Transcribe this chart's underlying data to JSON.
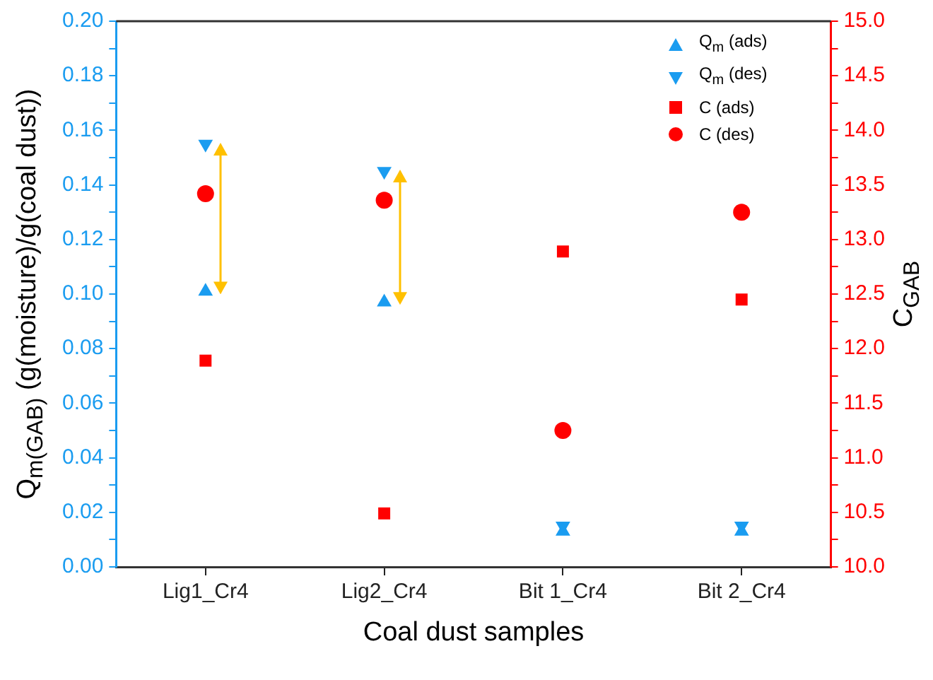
{
  "chart_data": {
    "type": "scatter",
    "xlabel": "Coal dust samples",
    "ylabel": "Q$_{m(GAB)}$ (g(moisture)/g(coal dust))",
    "y2label": "C$_{GAB}$",
    "categories": [
      "Lig1_Cr4",
      "Lig2_Cr4",
      "Bit 1_Cr4",
      "Bit 2_Cr4"
    ],
    "series": [
      {
        "name": "Q$_{m}$ (ads)",
        "color": "#1a9cf0",
        "marker": "triangle",
        "values": [
          0.101,
          0.097,
          0.013,
          0.013
        ]
      },
      {
        "name": "Q$_{m}$ (des)",
        "color": "#1a9cf0",
        "marker": "triangle-down",
        "values": [
          0.155,
          0.145,
          0.015,
          0.015
        ]
      },
      {
        "name": "C (ads)",
        "color": "#ff0000",
        "marker": "square",
        "axis": "y2",
        "values": [
          11.89,
          10.49,
          12.89,
          12.45
        ]
      },
      {
        "name": "C (des)",
        "color": "#ff0000",
        "marker": "circle",
        "axis": "y2",
        "values": [
          13.42,
          13.36,
          11.25,
          13.25
        ]
      }
    ],
    "ylim": [
      0,
      0.2
    ],
    "yticks": [
      {
        "value": 0,
        "label": "0.00"
      },
      {
        "value": 0.01,
        "label": null
      },
      {
        "value": 0.02,
        "label": "0.02"
      },
      {
        "value": 0.03,
        "label": null
      },
      {
        "value": 0.04,
        "label": "0.04"
      },
      {
        "value": 0.05,
        "label": null
      },
      {
        "value": 0.06,
        "label": "0.06"
      },
      {
        "value": 0.07,
        "label": null
      },
      {
        "value": 0.08,
        "label": "0.08"
      },
      {
        "value": 0.09,
        "label": null
      },
      {
        "value": 0.1,
        "label": "0.10"
      },
      {
        "value": 0.11,
        "label": null
      },
      {
        "value": 0.12,
        "label": "0.12"
      },
      {
        "value": 0.13,
        "label": null
      },
      {
        "value": 0.14,
        "label": "0.14"
      },
      {
        "value": 0.15,
        "label": null
      },
      {
        "value": 0.16,
        "label": "0.16"
      },
      {
        "value": 0.17,
        "label": null
      },
      {
        "value": 0.18,
        "label": "0.18"
      },
      {
        "value": 0.19,
        "label": null
      },
      {
        "value": 0.2,
        "label": "0.20"
      }
    ],
    "y2lim": [
      10,
      15
    ],
    "y2ticks": [
      {
        "value": 10,
        "label": "10.0"
      },
      {
        "value": 10.25,
        "label": null
      },
      {
        "value": 10.5,
        "label": "10.5"
      },
      {
        "value": 10.75,
        "label": null
      },
      {
        "value": 11,
        "label": "11.0"
      },
      {
        "value": 11.25,
        "label": null
      },
      {
        "value": 11.5,
        "label": "11.5"
      },
      {
        "value": 11.75,
        "label": null
      },
      {
        "value": 12,
        "label": "12.0"
      },
      {
        "value": 12.25,
        "label": null
      },
      {
        "value": 12.5,
        "label": "12.5"
      },
      {
        "value": 12.75,
        "label": null
      },
      {
        "value": 13,
        "label": "13.0"
      },
      {
        "value": 13.25,
        "label": null
      },
      {
        "value": 13.5,
        "label": "13.5"
      },
      {
        "value": 13.75,
        "label": null
      },
      {
        "value": 14,
        "label": "14.0"
      },
      {
        "value": 14.25,
        "label": null
      },
      {
        "value": 14.5,
        "label": "14.5"
      },
      {
        "value": 14.75,
        "label": null
      },
      {
        "value": 15,
        "label": "15.0"
      }
    ],
    "legend": "top right"
  }
}
